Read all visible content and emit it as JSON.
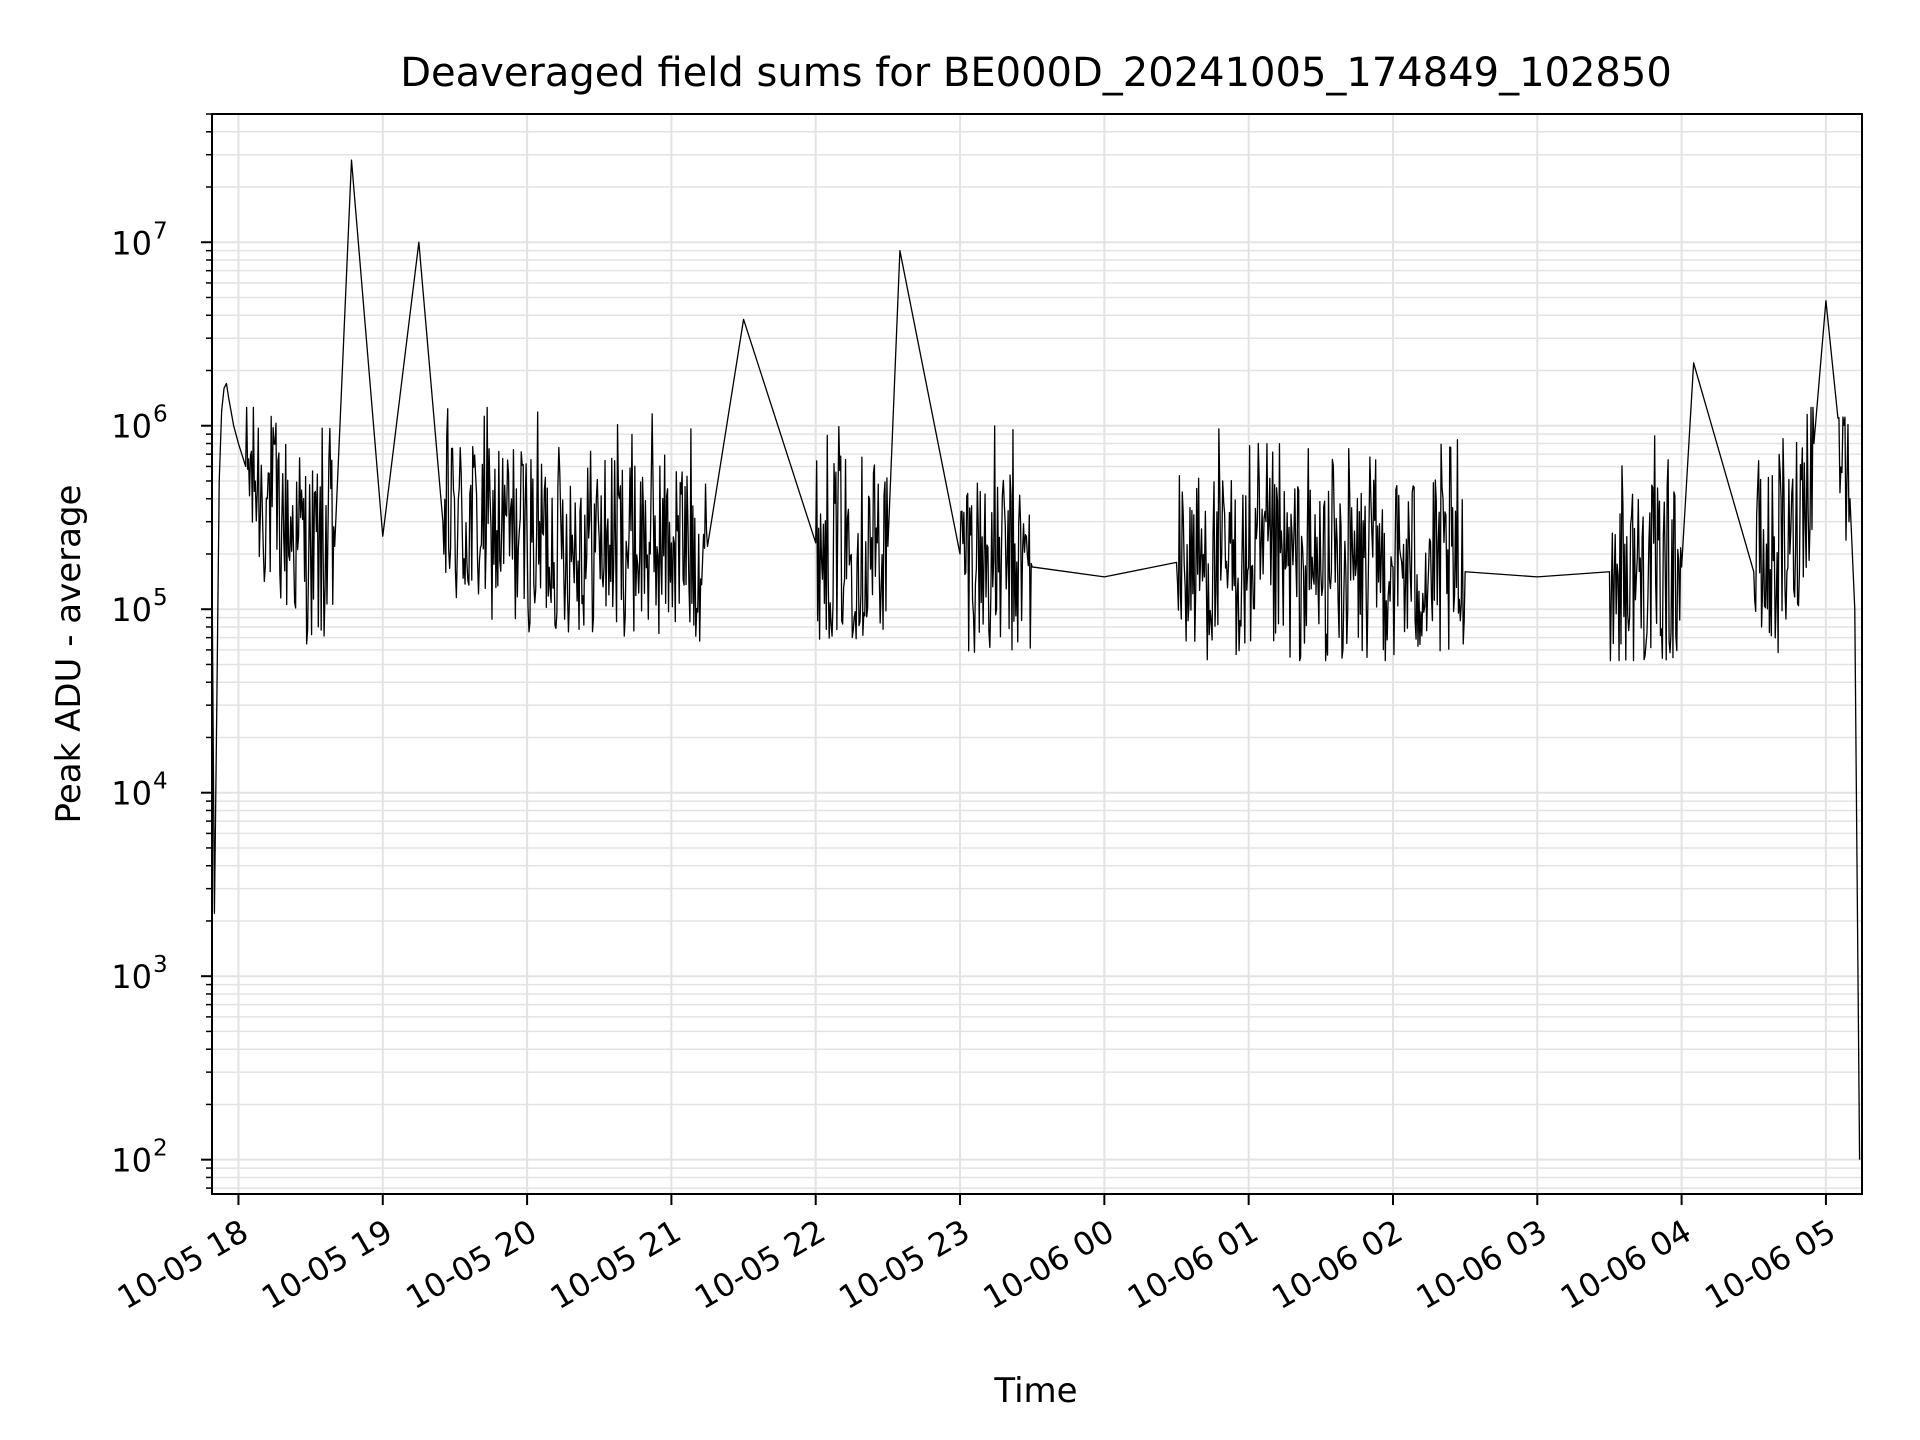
{
  "chart_data": {
    "type": "line",
    "title": "Deaveraged field sums for BE000D_20241005_174849_102850",
    "xlabel": "Time",
    "ylabel": "Peak ADU - average",
    "yscale": "log",
    "ylim": [
      65,
      50000000
    ],
    "xlim": [
      "2024-10-05 17:49",
      "2024-10-06 05:15"
    ],
    "grid": true,
    "line_color": "#000000",
    "grid_color": "#e3e3e3",
    "x_tick_labels": [
      "10-05 18",
      "10-05 19",
      "10-05 20",
      "10-05 21",
      "10-05 22",
      "10-05 23",
      "10-06 00",
      "10-06 01",
      "10-06 02",
      "10-06 03",
      "10-06 04",
      "10-06 05"
    ],
    "y_ticks": [
      {
        "base": "10",
        "exp": "2"
      },
      {
        "base": "10",
        "exp": "3"
      },
      {
        "base": "10",
        "exp": "4"
      },
      {
        "base": "10",
        "exp": "5"
      },
      {
        "base": "10",
        "exp": "6"
      },
      {
        "base": "10",
        "exp": "7"
      }
    ],
    "series": [
      {
        "x": [
          "2024-10-05 17:49",
          "2024-10-05 17:50",
          "2024-10-05 17:51",
          "2024-10-05 17:52",
          "2024-10-05 17:53",
          "2024-10-05 17:54",
          "2024-10-05 17:55",
          "2024-10-05 17:56",
          "2024-10-05 17:58",
          "2024-10-05 18:00",
          "2024-10-05 18:03",
          "2024-10-05 18:07",
          "2024-10-05 18:12",
          "2024-10-05 18:18",
          "2024-10-05 18:25",
          "2024-10-05 18:30",
          "2024-10-05 18:40",
          "2024-10-05 18:47",
          "2024-10-05 19:00",
          "2024-10-05 19:15",
          "2024-10-05 19:25",
          "2024-10-05 19:45",
          "2024-10-05 20:00",
          "2024-10-05 20:30",
          "2024-10-05 21:00",
          "2024-10-05 21:15",
          "2024-10-05 21:30",
          "2024-10-05 22:00",
          "2024-10-05 22:30",
          "2024-10-05 22:35",
          "2024-10-05 23:00",
          "2024-10-05 23:30",
          "2024-10-06 00:00",
          "2024-10-06 00:30",
          "2024-10-06 01:00",
          "2024-10-06 01:30",
          "2024-10-06 02:00",
          "2024-10-06 02:30",
          "2024-10-06 03:00",
          "2024-10-06 03:30",
          "2024-10-06 04:00",
          "2024-10-06 04:05",
          "2024-10-06 04:30",
          "2024-10-06 04:45",
          "2024-10-06 04:55",
          "2024-10-06 05:00",
          "2024-10-06 05:05",
          "2024-10-06 05:10",
          "2024-10-06 05:12",
          "2024-10-06 05:14"
        ],
        "y": [
          180000,
          2200,
          30000,
          500000,
          1200000,
          1600000,
          1700000,
          1400000,
          1000000,
          800000,
          600000,
          500000,
          400000,
          300000,
          250000,
          200000,
          220000,
          28000000,
          250000,
          10000000,
          300000,
          280000,
          250000,
          240000,
          230000,
          220000,
          3800000,
          230000,
          220000,
          9000000,
          200000,
          170000,
          150000,
          180000,
          170000,
          160000,
          170000,
          160000,
          150000,
          160000,
          170000,
          2200000,
          160000,
          200000,
          800000,
          4800000,
          1100000,
          400000,
          100000,
          100
        ]
      }
    ]
  }
}
